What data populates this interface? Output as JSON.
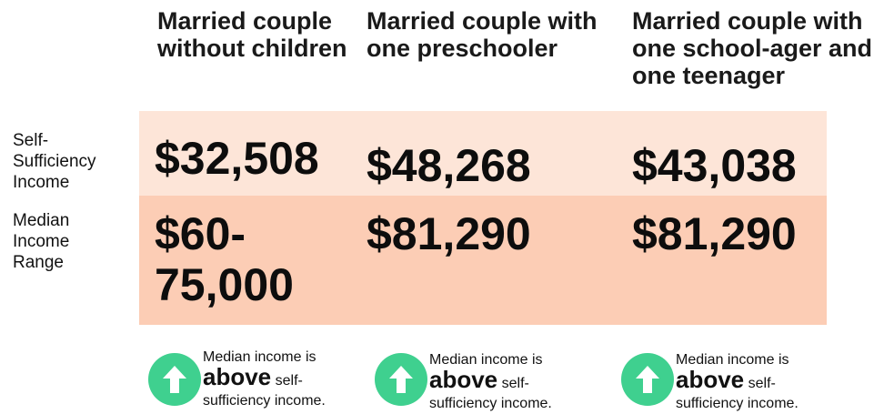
{
  "columns": [
    "Married couple without children",
    "Married couple with one preschooler",
    "Married couple with one school-ager and one teenager"
  ],
  "rows": [
    {
      "label": "Self-Sufficiency Income",
      "values": [
        "$32,508",
        "$48,268",
        "$43,038"
      ]
    },
    {
      "label": "Median Income Range",
      "values": [
        "$60-75,000",
        "$81,290",
        "$81,290"
      ]
    }
  ],
  "notes": [
    {
      "intro": "Median income is",
      "emphasis": "above",
      "rest": "self-sufficiency income."
    },
    {
      "intro": "Median income is",
      "emphasis": "above",
      "rest": "self-sufficiency income."
    },
    {
      "intro": "Median income is",
      "emphasis": "above",
      "rest": "self-sufficiency income."
    }
  ]
}
